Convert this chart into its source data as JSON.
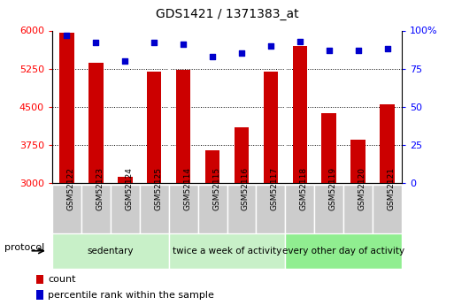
{
  "title": "GDS1421 / 1371383_at",
  "samples": [
    "GSM52122",
    "GSM52123",
    "GSM52124",
    "GSM52125",
    "GSM52114",
    "GSM52115",
    "GSM52116",
    "GSM52117",
    "GSM52118",
    "GSM52119",
    "GSM52120",
    "GSM52121"
  ],
  "counts": [
    5950,
    5370,
    3120,
    5190,
    5220,
    3640,
    4100,
    5190,
    5700,
    4380,
    3850,
    4550
  ],
  "percentiles": [
    97,
    92,
    80,
    92,
    91,
    83,
    85,
    90,
    93,
    87,
    87,
    88
  ],
  "groups": [
    {
      "label": "sedentary",
      "start": 0,
      "end": 4,
      "color": "#c8f0c8"
    },
    {
      "label": "twice a week of activity",
      "start": 4,
      "end": 8,
      "color": "#c8f0c8"
    },
    {
      "label": "every other day of activity",
      "start": 8,
      "end": 12,
      "color": "#90ee90"
    }
  ],
  "ylim_left": [
    3000,
    6000
  ],
  "ylim_right": [
    0,
    100
  ],
  "yticks_left": [
    3000,
    3750,
    4500,
    5250,
    6000
  ],
  "yticks_right": [
    0,
    25,
    50,
    75,
    100
  ],
  "bar_color": "#cc0000",
  "dot_color": "#0000cc",
  "bar_width": 0.5,
  "group_colors": [
    "#c8f0c8",
    "#c8f0c8",
    "#90ee90"
  ],
  "sample_box_color": "#cccccc",
  "legend_items": [
    {
      "label": "count",
      "color": "#cc0000"
    },
    {
      "label": "percentile rank within the sample",
      "color": "#0000cc"
    }
  ]
}
